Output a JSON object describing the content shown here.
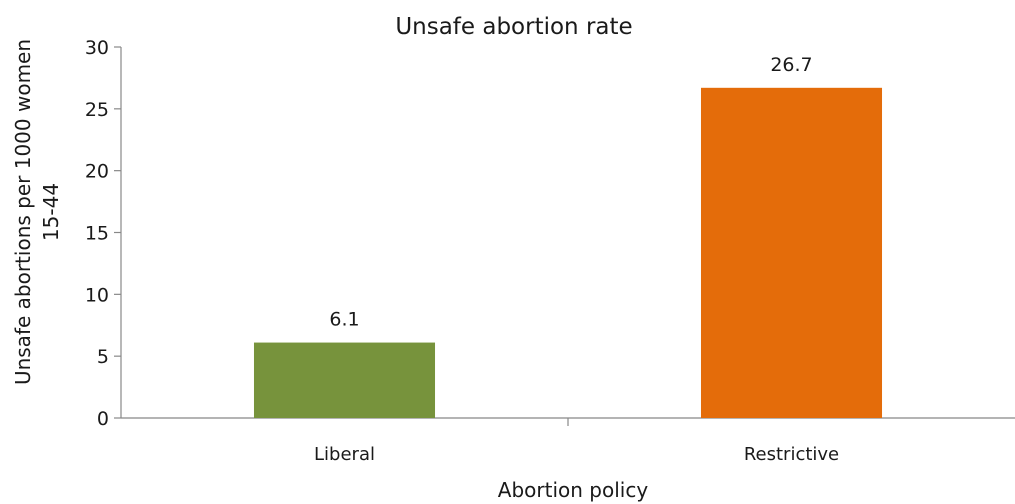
{
  "chart_data": {
    "type": "bar",
    "title": "Unsafe abortion rate",
    "xlabel": "Abortion policy",
    "ylabel_lines": [
      "Unsafe abortions per 1000 women",
      "15-44"
    ],
    "categories": [
      "Liberal",
      "Restrictive"
    ],
    "values": [
      6.1,
      26.7
    ],
    "data_labels": [
      "6.1",
      "26.7"
    ],
    "colors": [
      "#77933c",
      "#e46c0a"
    ],
    "ylim": [
      0,
      30
    ],
    "yticks": [
      0,
      5,
      10,
      15,
      20,
      25,
      30
    ],
    "grid": false,
    "legend": "none"
  }
}
